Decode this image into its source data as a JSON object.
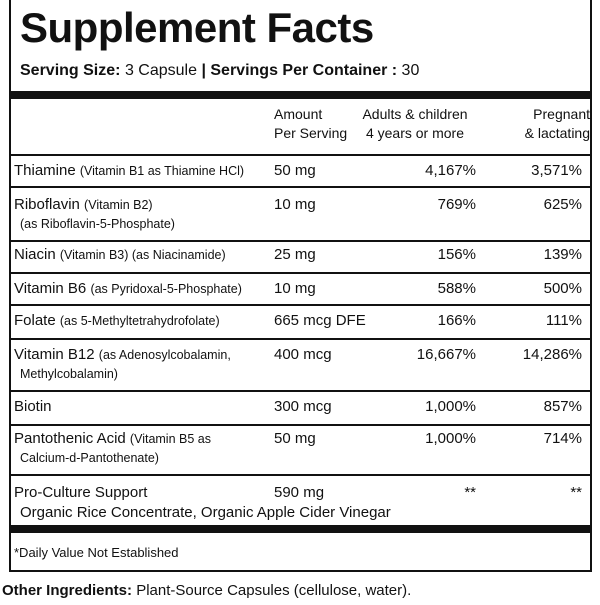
{
  "header": {
    "title": "Supplement Facts",
    "serving_size_label": "Serving Size:",
    "serving_size": "3 Capsule",
    "separator": "|",
    "servings_label": "Servings Per Container :",
    "servings": "30"
  },
  "table": {
    "columns": [
      [
        "Amount",
        "Per Serving"
      ],
      [
        "Adults & children",
        "4 years or more"
      ],
      [
        "Pregnant",
        "& lactating"
      ]
    ],
    "rows": [
      {
        "name": "Thiamine",
        "detail": "(Vitamin B1 as Thiamine HCl)",
        "amount": "50 mg",
        "adults": "4,167%",
        "pregnant": "3,571%"
      },
      {
        "name": "Riboflavin",
        "detail": "(Vitamin B2)",
        "detail2": "(as Riboflavin-5-Phosphate)",
        "amount": "10 mg",
        "adults": "769%",
        "pregnant": "625%"
      },
      {
        "name": "Niacin",
        "detail": "(Vitamin B3) (as Niacinamide)",
        "amount": "25 mg",
        "adults": "156%",
        "pregnant": "139%"
      },
      {
        "name": "Vitamin B6",
        "detail": "(as Pyridoxal-5-Phosphate)",
        "amount": "10 mg",
        "adults": "588%",
        "pregnant": "500%"
      },
      {
        "name": "Folate",
        "detail": "(as 5-Methyltetrahydrofolate)",
        "amount": "665 mcg DFE",
        "adults": "166%",
        "pregnant": "111%"
      },
      {
        "name": "Vitamin B12",
        "detail": "(as Adenosylcobalamin,",
        "detail2": "Methylcobalamin)",
        "amount": "400 mcg",
        "adults": "16,667%",
        "pregnant": "14,286%"
      },
      {
        "name": "Biotin",
        "amount": "300 mcg",
        "adults": "1,000%",
        "pregnant": "857%"
      },
      {
        "name": "Pantothenic Acid",
        "detail": "(Vitamin B5 as",
        "detail2": "Calcium-d-Pantothenate)",
        "amount": "50 mg",
        "adults": "1,000%",
        "pregnant": "714%"
      },
      {
        "name": "Pro-Culture Support",
        "sub": "Organic Rice Concentrate, Organic Apple Cider Vinegar",
        "amount": "590 mg",
        "adults": "**",
        "pregnant": "**"
      }
    ]
  },
  "footnote": "*Daily Value Not Established",
  "other_ingredients_label": "Other Ingredients:",
  "other_ingredients": "Plant-Source Capsules (cellulose, water)."
}
